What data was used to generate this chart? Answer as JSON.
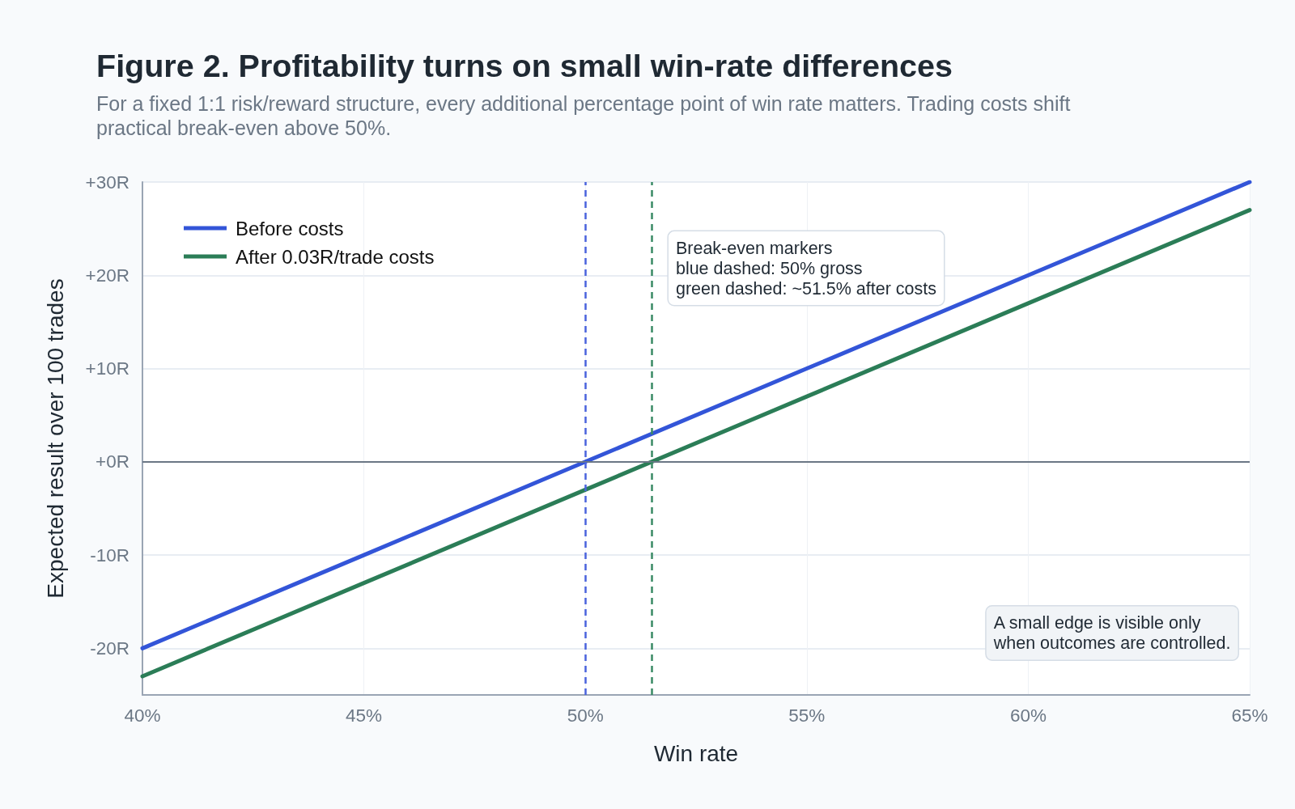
{
  "chart_data": {
    "type": "line",
    "title": "Figure 2. Profitability turns on small win-rate differences",
    "subtitle": "For a fixed 1:1 risk/reward structure, every additional percentage point of win rate matters. Trading costs shift practical break-even above 50%.",
    "xlabel": "Win rate",
    "ylabel": "Expected result over 100 trades",
    "x": [
      40,
      45,
      50,
      55,
      60,
      65
    ],
    "series": [
      {
        "name": "Before costs",
        "color": "#3355d8",
        "values": [
          -20,
          -10,
          0,
          10,
          20,
          30
        ]
      },
      {
        "name": "After 0.03R/trade costs",
        "color": "#2b7d57",
        "values": [
          -23,
          -13,
          -3,
          7,
          17,
          27
        ]
      }
    ],
    "xlim": [
      40,
      65
    ],
    "xticks": [
      {
        "value": 40,
        "label": "40%"
      },
      {
        "value": 45,
        "label": "45%"
      },
      {
        "value": 50,
        "label": "50%"
      },
      {
        "value": 55,
        "label": "55%"
      },
      {
        "value": 60,
        "label": "60%"
      },
      {
        "value": 65,
        "label": "65%"
      }
    ],
    "ylim": [
      -25,
      30
    ],
    "yticks": [
      {
        "value": -20,
        "label": "-20R"
      },
      {
        "value": -10,
        "label": "-10R"
      },
      {
        "value": 0,
        "label": "+0R"
      },
      {
        "value": 10,
        "label": "+10R"
      },
      {
        "value": 20,
        "label": "+20R"
      },
      {
        "value": 30,
        "label": "+30R"
      }
    ],
    "ref_lines": [
      {
        "axis": "y",
        "value": 0,
        "color": "#6b7785",
        "line_style": "solid"
      },
      {
        "axis": "x",
        "value": 50,
        "color": "#4a63dd",
        "line_style": "dashed"
      },
      {
        "axis": "x",
        "value": 51.5,
        "color": "#3a8a65",
        "line_style": "dashed"
      }
    ],
    "annotations": [
      "Break-even markers\nblue dashed: 50% gross\ngreen dashed: ~51.5% after costs",
      "A small edge is visible only\nwhen outcomes are controlled."
    ],
    "grid": true,
    "legend": "top left",
    "marker": "none",
    "line_style": "solid"
  }
}
